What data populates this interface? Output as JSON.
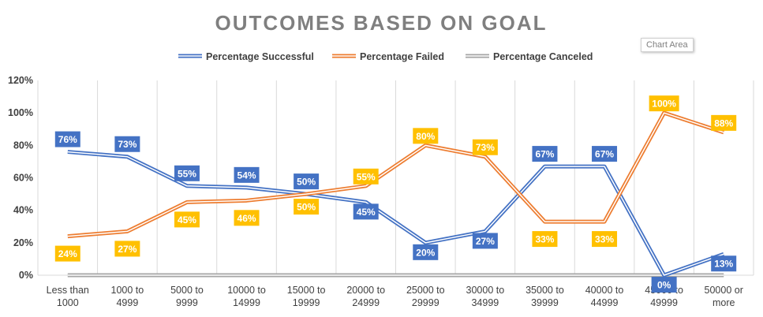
{
  "chart_area_tooltip": "Chart Area",
  "chart_data": {
    "type": "line",
    "title": "OUTCOMES BASED ON GOAL",
    "xlabel": "",
    "ylabel": "",
    "ylim": [
      0,
      120
    ],
    "ytick_step": 20,
    "ytick_suffix": "%",
    "grid": "vertical",
    "legend_position": "top",
    "categories": [
      [
        "Less than",
        "1000"
      ],
      [
        "1000 to",
        "4999"
      ],
      [
        "5000 to",
        "9999"
      ],
      [
        "10000 to",
        "14999"
      ],
      [
        "15000 to",
        "19999"
      ],
      [
        "20000 to",
        "24999"
      ],
      [
        "25000 to",
        "29999"
      ],
      [
        "30000 to",
        "34999"
      ],
      [
        "35000 to",
        "39999"
      ],
      [
        "40000 to",
        "44999"
      ],
      [
        "45000 to",
        "49999"
      ],
      [
        "50000 or",
        "more"
      ]
    ],
    "series": [
      {
        "name": "Percentage Successful",
        "color": "#4472c4",
        "values": [
          76,
          73,
          55,
          54,
          50,
          45,
          20,
          27,
          67,
          67,
          0,
          13
        ],
        "labels": [
          "76%",
          "73%",
          "55%",
          "54%",
          "50%",
          "45%",
          "20%",
          "27%",
          "67%",
          "67%",
          "0%",
          "13%"
        ]
      },
      {
        "name": "Percentage Failed",
        "color": "#ed7d31",
        "values": [
          24,
          27,
          45,
          46,
          50,
          55,
          80,
          73,
          33,
          33,
          100,
          88
        ],
        "labels": [
          "24%",
          "27%",
          "45%",
          "46%",
          "50%",
          "55%",
          "80%",
          "73%",
          "33%",
          "33%",
          "100%",
          "88%"
        ],
        "label_color": "#ffc000"
      },
      {
        "name": "Percentage Canceled",
        "color": "#a5a5a5",
        "values": [
          0,
          0,
          0,
          0,
          0,
          0,
          0,
          0,
          0,
          0,
          0,
          0
        ]
      }
    ]
  }
}
